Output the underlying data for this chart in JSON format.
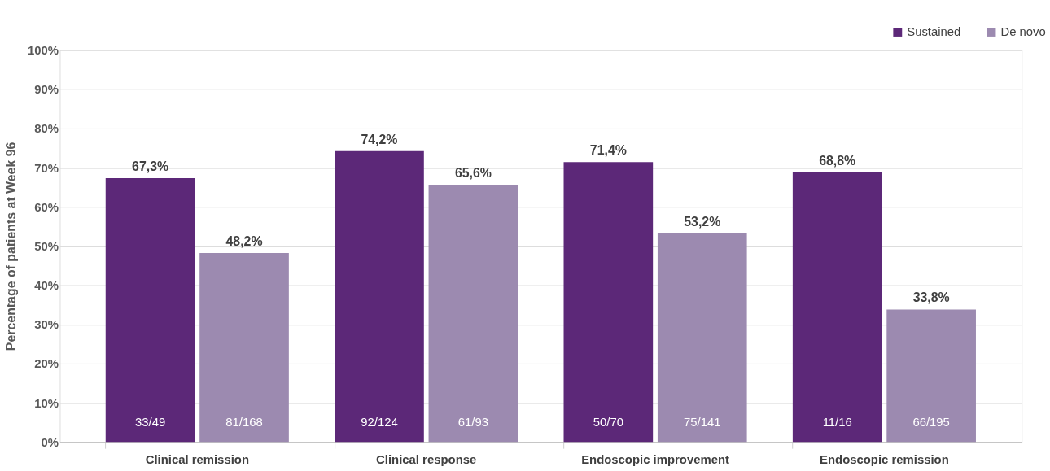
{
  "chart_data": {
    "type": "bar",
    "ylabel": "Percentage of patients at Week 96",
    "categories": [
      "Clinical remission",
      "Clinical response",
      "Endoscopic improvement",
      "Endoscopic remission"
    ],
    "series": [
      {
        "name": "Sustained",
        "color": "#5c2878",
        "values": [
          67.3,
          74.2,
          71.4,
          68.8
        ],
        "value_labels": [
          "67,3%",
          "74,2%",
          "71,4%",
          "68,8%"
        ]
      },
      {
        "name": "De novo",
        "color": "#9c8ab0",
        "values": [
          48.2,
          65.6,
          53.2,
          33.8
        ],
        "value_labels": [
          "48,2%",
          "65,6%",
          "53,2%",
          "33,8%"
        ]
      }
    ],
    "annotations": [
      "33/49",
      "81/168",
      "92/124",
      "61/93",
      "50/70",
      "75/141",
      "11/16",
      "66/195"
    ],
    "ylim": [
      0,
      100
    ],
    "yticks": [
      {
        "value": 0,
        "label": "0%"
      },
      {
        "value": 10,
        "label": "10%"
      },
      {
        "value": 20,
        "label": "20%"
      },
      {
        "value": 30,
        "label": "30%"
      },
      {
        "value": 40,
        "label": "40%"
      },
      {
        "value": 50,
        "label": "50%"
      },
      {
        "value": 60,
        "label": "60%"
      },
      {
        "value": 70,
        "label": "70%"
      },
      {
        "value": 80,
        "label": "80%"
      },
      {
        "value": 90,
        "label": "90%"
      },
      {
        "value": 100,
        "label": "100%"
      }
    ],
    "grid": "y",
    "legend": "top right"
  }
}
